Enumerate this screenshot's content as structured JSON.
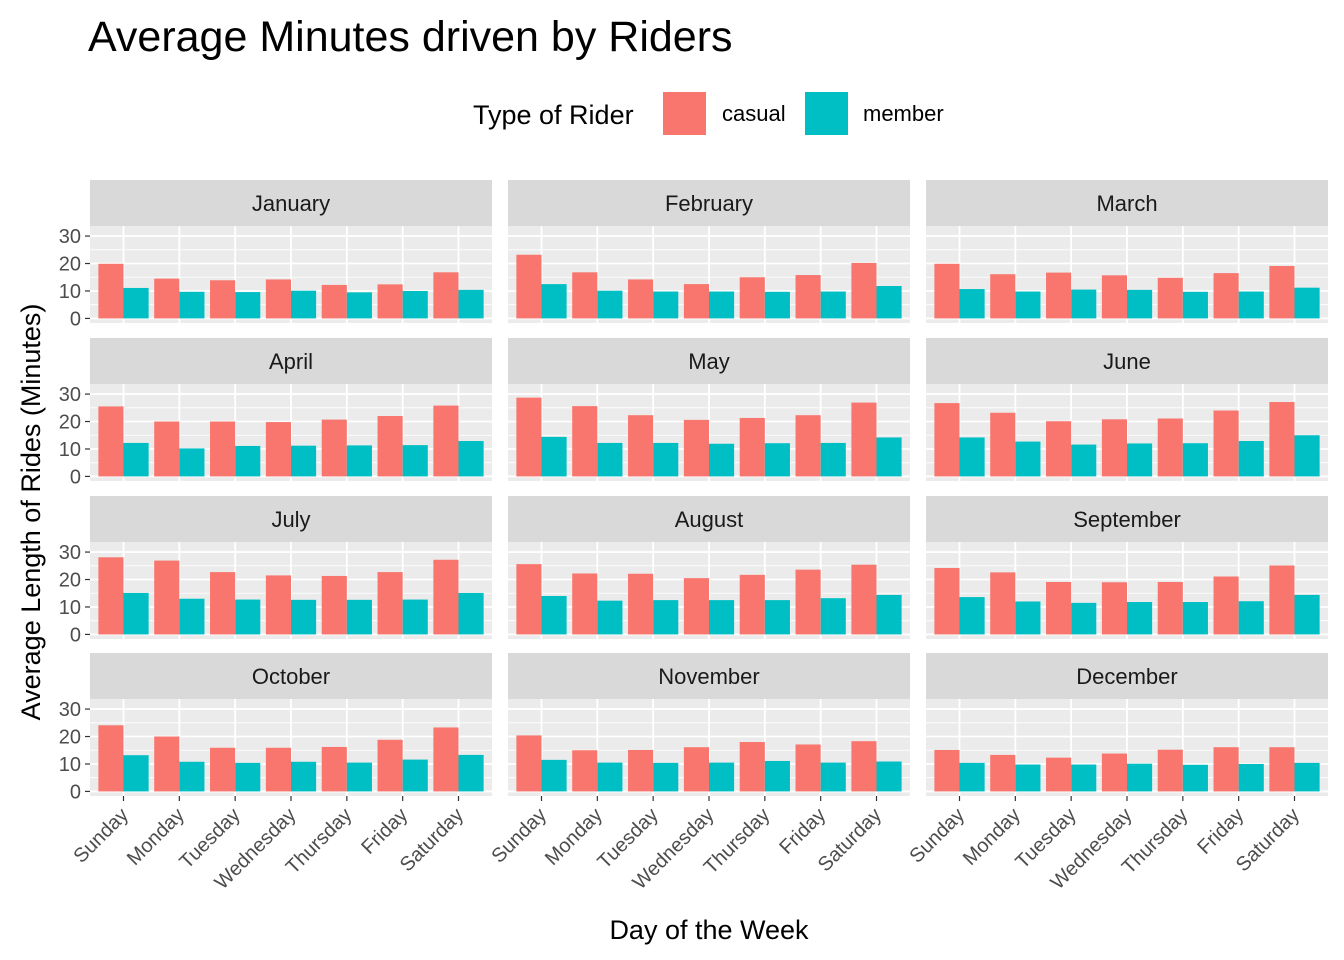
{
  "chart_data": {
    "type": "bar",
    "title": "Average Minutes driven by Riders",
    "xlabel": "Day of the Week",
    "ylabel": "Average Length of Rides (Minutes)",
    "ylim": [
      0,
      30
    ],
    "yticks": [
      0,
      10,
      20,
      30
    ],
    "grid": true,
    "legend": {
      "title": "Type of Rider",
      "position": "top",
      "entries": [
        {
          "label": "casual",
          "color": "#F8766D"
        },
        {
          "label": "member",
          "color": "#00BFC4"
        }
      ]
    },
    "categories": [
      "Sunday",
      "Monday",
      "Tuesday",
      "Wednesday",
      "Thursday",
      "Friday",
      "Saturday"
    ],
    "colors": {
      "casual": "#F8766D",
      "member": "#00BFC4",
      "panel": "#EBEBEB",
      "strip": "#D9D9D9"
    },
    "facets": [
      {
        "month": "January",
        "casual": [
          19.9,
          14.5,
          13.9,
          14.2,
          12.2,
          12.4,
          16.8
        ],
        "member": [
          11.1,
          9.7,
          9.6,
          10.1,
          9.5,
          10.0,
          10.4
        ]
      },
      {
        "month": "February",
        "casual": [
          23.2,
          16.8,
          14.2,
          12.5,
          15.0,
          15.8,
          20.2
        ],
        "member": [
          12.5,
          10.1,
          9.8,
          9.8,
          9.7,
          9.8,
          11.8
        ]
      },
      {
        "month": "March",
        "casual": [
          19.9,
          16.1,
          16.7,
          15.7,
          14.8,
          16.5,
          19.1
        ],
        "member": [
          10.7,
          9.8,
          10.5,
          10.4,
          9.7,
          9.8,
          11.2
        ]
      },
      {
        "month": "April",
        "casual": [
          25.5,
          20.0,
          20.0,
          19.8,
          20.7,
          22.0,
          25.8
        ],
        "member": [
          12.2,
          10.2,
          11.1,
          11.2,
          11.3,
          11.4,
          12.9
        ]
      },
      {
        "month": "May",
        "casual": [
          28.7,
          25.6,
          22.3,
          20.6,
          21.3,
          22.3,
          26.9
        ],
        "member": [
          14.4,
          12.2,
          12.2,
          11.9,
          12.1,
          12.2,
          14.2
        ]
      },
      {
        "month": "June",
        "casual": [
          26.7,
          23.2,
          20.1,
          20.8,
          21.1,
          24.0,
          27.1
        ],
        "member": [
          14.2,
          12.7,
          11.6,
          12.0,
          12.1,
          12.9,
          15.0
        ]
      },
      {
        "month": "July",
        "casual": [
          28.1,
          26.9,
          22.7,
          21.5,
          21.3,
          22.7,
          27.2
        ],
        "member": [
          15.1,
          13.0,
          12.7,
          12.6,
          12.6,
          12.7,
          15.1
        ]
      },
      {
        "month": "August",
        "casual": [
          25.6,
          22.2,
          22.1,
          20.5,
          21.7,
          23.6,
          25.4
        ],
        "member": [
          14.0,
          12.3,
          12.5,
          12.5,
          12.5,
          13.2,
          14.4
        ]
      },
      {
        "month": "September",
        "casual": [
          24.2,
          22.6,
          19.1,
          19.0,
          19.1,
          21.1,
          25.1
        ],
        "member": [
          13.6,
          12.0,
          11.5,
          11.8,
          11.8,
          12.1,
          14.4
        ]
      },
      {
        "month": "October",
        "casual": [
          24.1,
          20.0,
          15.9,
          15.9,
          16.2,
          18.8,
          23.3
        ],
        "member": [
          13.2,
          10.8,
          10.4,
          10.8,
          10.5,
          11.6,
          13.3
        ]
      },
      {
        "month": "November",
        "casual": [
          20.4,
          15.0,
          15.1,
          16.1,
          18.0,
          17.1,
          18.3
        ],
        "member": [
          11.5,
          10.5,
          10.4,
          10.5,
          11.1,
          10.5,
          10.9
        ]
      },
      {
        "month": "December",
        "casual": [
          15.1,
          13.3,
          12.3,
          13.8,
          15.2,
          16.1,
          16.1
        ],
        "member": [
          10.4,
          9.8,
          9.8,
          10.1,
          9.7,
          10.0,
          10.4
        ]
      }
    ]
  }
}
